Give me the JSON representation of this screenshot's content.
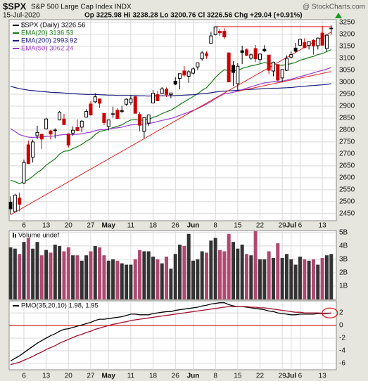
{
  "chart_data": [
    {
      "type": "candlestick",
      "title": "$SPX",
      "subtitle": "S&P 500 Large Cap Index INDX",
      "source": "@ StockCharts.com",
      "date": "15-Jul-2020",
      "quote": "Op 3225.98 Hi 3238.28 Lo 3200.76 Cl 3226.56 Chg +29.04 (+0.91%)",
      "name": "$SPX (Daily) 3226.56",
      "categories": [
        null,
        null,
        null,
        "6",
        null,
        null,
        null,
        null,
        "13",
        null,
        null,
        null,
        null,
        "20",
        null,
        null,
        null,
        null,
        "27",
        null,
        null,
        null,
        "May",
        null,
        null,
        null,
        null,
        "11",
        null,
        null,
        null,
        null,
        "18",
        null,
        null,
        null,
        null,
        "26",
        null,
        null,
        null,
        "Jun",
        null,
        null,
        null,
        null,
        "8",
        null,
        null,
        null,
        null,
        "15",
        null,
        null,
        null,
        null,
        "22",
        null,
        null,
        null,
        null,
        "29",
        null,
        "Jul",
        null,
        "6",
        null,
        null,
        null,
        null,
        "13",
        null,
        null
      ],
      "open": [
        2498,
        2458,
        2515,
        2578,
        2738,
        2686,
        2776,
        2782,
        2805,
        2796,
        2799,
        2842,
        2846,
        2784,
        2787,
        2810,
        2812,
        2854,
        2909,
        2918,
        2930,
        2869,
        2815,
        2868,
        2883,
        2878,
        2908,
        2915,
        2939,
        2865,
        2794,
        2829,
        2913,
        2948,
        2953,
        2970,
        2948,
        3004,
        3016,
        3047,
        3025,
        3038,
        3064,
        3098,
        3119,
        3163,
        3199,
        3213,
        3213,
        3123,
        3071,
        2994,
        3132,
        3136,
        3101,
        3141,
        3095,
        3138,
        3114,
        3047,
        3074,
        3018,
        3050,
        3105,
        3143,
        3155,
        3166,
        3154,
        3176,
        3153,
        3206,
        3141,
        3225.98
      ],
      "high": [
        2522,
        2533,
        2538,
        2676,
        2756,
        2760,
        2818,
        2782,
        2851,
        2801,
        2807,
        2880,
        2868,
        2785,
        2815,
        2845,
        2842,
        2887,
        2921,
        2954,
        2930,
        2869,
        2844,
        2898,
        2891,
        2901,
        2932,
        2945,
        2945,
        2875,
        2852,
        2865,
        2968,
        2964,
        2980,
        2978,
        2956,
        3021,
        3036,
        3068,
        3050,
        3063,
        3082,
        3131,
        3129,
        3211,
        3233,
        3223,
        3226,
        3123,
        3088,
        3080,
        3153,
        3141,
        3121,
        3156,
        3120,
        3155,
        3115,
        3086,
        3074,
        3054,
        3112,
        3129,
        3165,
        3182,
        3184,
        3167,
        3180,
        3187,
        3236,
        3200,
        3238.28
      ],
      "low": [
        2447,
        2455,
        2459,
        2574,
        2657,
        2664,
        2762,
        2721,
        2805,
        2761,
        2765,
        2842,
        2820,
        2727,
        2775,
        2794,
        2791,
        2854,
        2860,
        2912,
        2892,
        2821,
        2798,
        2852,
        2847,
        2870,
        2902,
        2906,
        2869,
        2794,
        2766,
        2816,
        2913,
        2922,
        2953,
        2938,
        2933,
        2988,
        2970,
        3023,
        2998,
        3032,
        3052,
        3090,
        3098,
        3163,
        3196,
        3194,
        3181,
        2999,
        2984,
        2965,
        3076,
        3109,
        3094,
        3084,
        3079,
        3127,
        3033,
        3025,
        3004,
        2999,
        3047,
        3101,
        3124,
        3155,
        3142,
        3137,
        3116,
        3137,
        3155,
        3128,
        3200.76
      ],
      "close": [
        2470,
        2527,
        2489,
        2664,
        2659,
        2750,
        2790,
        2762,
        2846,
        2783,
        2800,
        2875,
        2823,
        2737,
        2799,
        2798,
        2837,
        2878,
        2863,
        2939,
        2912,
        2831,
        2842,
        2868,
        2848,
        2881,
        2929,
        2930,
        2870,
        2820,
        2852,
        2863,
        2954,
        2922,
        2972,
        2949,
        2955,
        2992,
        3036,
        3030,
        3044,
        3056,
        3081,
        3123,
        3112,
        3194,
        3232,
        3207,
        3190,
        3002,
        3041,
        3067,
        3125,
        3113,
        3115,
        3098,
        3118,
        3131,
        3050,
        3084,
        3009,
        3053,
        3100,
        3116,
        3130,
        3180,
        3145,
        3170,
        3152,
        3185,
        3155,
        3197,
        3226.56
      ],
      "up_color": "#000000",
      "down_color": "#cc0000",
      "overlays": [
        {
          "name": "EMA(20) 3136.53",
          "color": "#1a7a1a",
          "values": [
            2590,
            2584,
            2575,
            2585,
            2592,
            2606,
            2622,
            2634,
            2653,
            2666,
            2679,
            2699,
            2711,
            2713,
            2722,
            2730,
            2740,
            2753,
            2763,
            2781,
            2794,
            2798,
            2803,
            2810,
            2815,
            2822,
            2833,
            2842,
            2843,
            2841,
            2842,
            2844,
            2853,
            2859,
            2869,
            2876,
            2883,
            2894,
            2907,
            2918,
            2929,
            2940,
            2952,
            2966,
            2977,
            2998,
            3020,
            3038,
            3053,
            3048,
            3048,
            3049,
            3058,
            3063,
            3069,
            3072,
            3077,
            3082,
            3079,
            3079,
            3072,
            3071,
            3074,
            3078,
            3083,
            3092,
            3097,
            3104,
            3108,
            3116,
            3120,
            3128,
            3136.53
          ]
        },
        {
          "name": "EMA(200) 2993.92",
          "color": "#1a1a80",
          "values": [
            2983,
            2978,
            2973,
            2970,
            2967,
            2965,
            2963,
            2961,
            2960,
            2958,
            2957,
            2956,
            2955,
            2953,
            2952,
            2951,
            2950,
            2949,
            2949,
            2949,
            2948,
            2947,
            2946,
            2946,
            2945,
            2945,
            2945,
            2945,
            2944,
            2943,
            2943,
            2942,
            2943,
            2943,
            2943,
            2943,
            2943,
            2944,
            2945,
            2946,
            2947,
            2948,
            2950,
            2952,
            2953,
            2956,
            2959,
            2961,
            2963,
            2964,
            2965,
            2966,
            2968,
            2969,
            2970,
            2971,
            2972,
            2974,
            2974,
            2975,
            2975,
            2976,
            2977,
            2978,
            2980,
            2982,
            2983,
            2985,
            2986,
            2988,
            2989,
            2991,
            2993.92
          ]
        },
        {
          "name": "EMA(50) 3062.24",
          "color": "#9b3fcf",
          "values": [
            2806,
            2794,
            2781,
            2775,
            2770,
            2769,
            2770,
            2770,
            2773,
            2774,
            2775,
            2779,
            2781,
            2780,
            2781,
            2782,
            2784,
            2788,
            2791,
            2797,
            2801,
            2802,
            2804,
            2807,
            2809,
            2812,
            2817,
            2821,
            2823,
            2823,
            2824,
            2826,
            2831,
            2835,
            2840,
            2844,
            2848,
            2854,
            2861,
            2868,
            2875,
            2882,
            2890,
            2899,
            2908,
            2919,
            2931,
            2942,
            2952,
            2954,
            2958,
            2962,
            2969,
            2975,
            2981,
            2987,
            2992,
            2997,
            2999,
            3003,
            3003,
            3005,
            3009,
            3013,
            3018,
            3024,
            3028,
            3034,
            3039,
            3045,
            3049,
            3055,
            3062.24
          ]
        }
      ],
      "trendlines": [
        {
          "color": "#e02020",
          "x": [
            0,
            72
          ],
          "y": [
            2445,
            3210
          ]
        },
        {
          "color": "#e02020",
          "x": [
            51,
            72
          ],
          "y": [
            2962,
            3045
          ]
        },
        {
          "color": "#e02020",
          "x": [
            46,
            72
          ],
          "y": [
            3233,
            3233
          ]
        }
      ],
      "ylim": [
        2420,
        3262
      ],
      "yticks": [
        2450,
        2500,
        2550,
        2600,
        2650,
        2700,
        2750,
        2800,
        2850,
        2900,
        2950,
        3000,
        3050,
        3100,
        3150,
        3200,
        3250
      ],
      "grid": true
    },
    {
      "type": "bar",
      "title": "Volume undef",
      "values": [
        3.9,
        3.8,
        3.4,
        4.3,
        4.6,
        3.8,
        4.3,
        3.3,
        3.7,
        3.5,
        4.1,
        4.0,
        3.6,
        3.9,
        3.3,
        3.3,
        2.9,
        3.3,
        3.6,
        4.0,
        3.9,
        3.3,
        2.9,
        3.0,
        2.9,
        2.7,
        2.6,
        2.6,
        3.0,
        3.7,
        3.6,
        3.6,
        3.2,
        3.0,
        2.7,
        3.2,
        2.3,
        3.4,
        4.1,
        4.0,
        4.9,
        2.9,
        3.0,
        3.6,
        3.5,
        4.4,
        4.6,
        3.7,
        3.6,
        4.9,
        4.3,
        3.8,
        4.1,
        3.4,
        3.3,
        5.1,
        3.0,
        3.0,
        3.6,
        3.1,
        4.2,
        3.1,
        3.4,
        3.0,
        2.6,
        3.2,
        3.0,
        2.9,
        3.0,
        2.6,
        3.1,
        3.3,
        3.4
      ],
      "up_color": "#333333",
      "down_color": "#b04870",
      "ylim": [
        0,
        5.15
      ],
      "yticks": [
        {
          "value": 1,
          "label": "1B"
        },
        {
          "value": 2,
          "label": "2B"
        },
        {
          "value": 3,
          "label": "3B"
        },
        {
          "value": 4,
          "label": "4B"
        },
        {
          "value": 5,
          "label": "5B"
        }
      ],
      "grid": true
    },
    {
      "type": "line",
      "title": "PMO(35,20,10) 1.98, 1.95",
      "series": [
        {
          "color": "#000000",
          "values": [
            -5.6,
            -5.2,
            -4.8,
            -4.3,
            -3.8,
            -3.3,
            -2.8,
            -2.4,
            -2.0,
            -1.6,
            -1.3,
            -0.9,
            -0.6,
            -0.5,
            -0.3,
            -0.1,
            0.1,
            0.3,
            0.5,
            0.8,
            1.0,
            1.0,
            1.1,
            1.2,
            1.3,
            1.4,
            1.6,
            1.8,
            1.8,
            1.7,
            1.7,
            1.7,
            1.9,
            2.0,
            2.1,
            2.2,
            2.2,
            2.4,
            2.5,
            2.6,
            2.7,
            2.8,
            2.9,
            3.1,
            3.2,
            3.4,
            3.5,
            3.6,
            3.6,
            3.3,
            3.1,
            3.0,
            3.0,
            2.9,
            2.8,
            2.7,
            2.6,
            2.5,
            2.3,
            2.2,
            2.0,
            1.9,
            1.8,
            1.7,
            1.7,
            1.8,
            1.8,
            1.8,
            1.8,
            1.9,
            1.9,
            1.9,
            1.98
          ]
        },
        {
          "color": "#a01030",
          "values": [
            -6.2,
            -6.0,
            -5.8,
            -5.5,
            -5.2,
            -4.9,
            -4.5,
            -4.2,
            -3.8,
            -3.5,
            -3.2,
            -2.8,
            -2.5,
            -2.2,
            -1.9,
            -1.6,
            -1.4,
            -1.1,
            -0.9,
            -0.6,
            -0.4,
            -0.2,
            0.0,
            0.2,
            0.3,
            0.5,
            0.6,
            0.8,
            0.9,
            1.0,
            1.1,
            1.2,
            1.3,
            1.4,
            1.5,
            1.6,
            1.7,
            1.8,
            1.9,
            2.0,
            2.1,
            2.2,
            2.3,
            2.4,
            2.5,
            2.6,
            2.7,
            2.8,
            2.9,
            3.0,
            3.0,
            3.0,
            3.0,
            3.0,
            2.9,
            2.9,
            2.8,
            2.8,
            2.7,
            2.6,
            2.5,
            2.4,
            2.3,
            2.2,
            2.1,
            2.1,
            2.0,
            2.0,
            2.0,
            2.0,
            1.95,
            1.95,
            1.95
          ]
        }
      ],
      "hline": 0,
      "hline_color": "#cc0000",
      "ylim": [
        -7,
        3.9
      ],
      "yticks": [
        2,
        0,
        -2,
        -4,
        -6
      ],
      "grid": true
    }
  ]
}
